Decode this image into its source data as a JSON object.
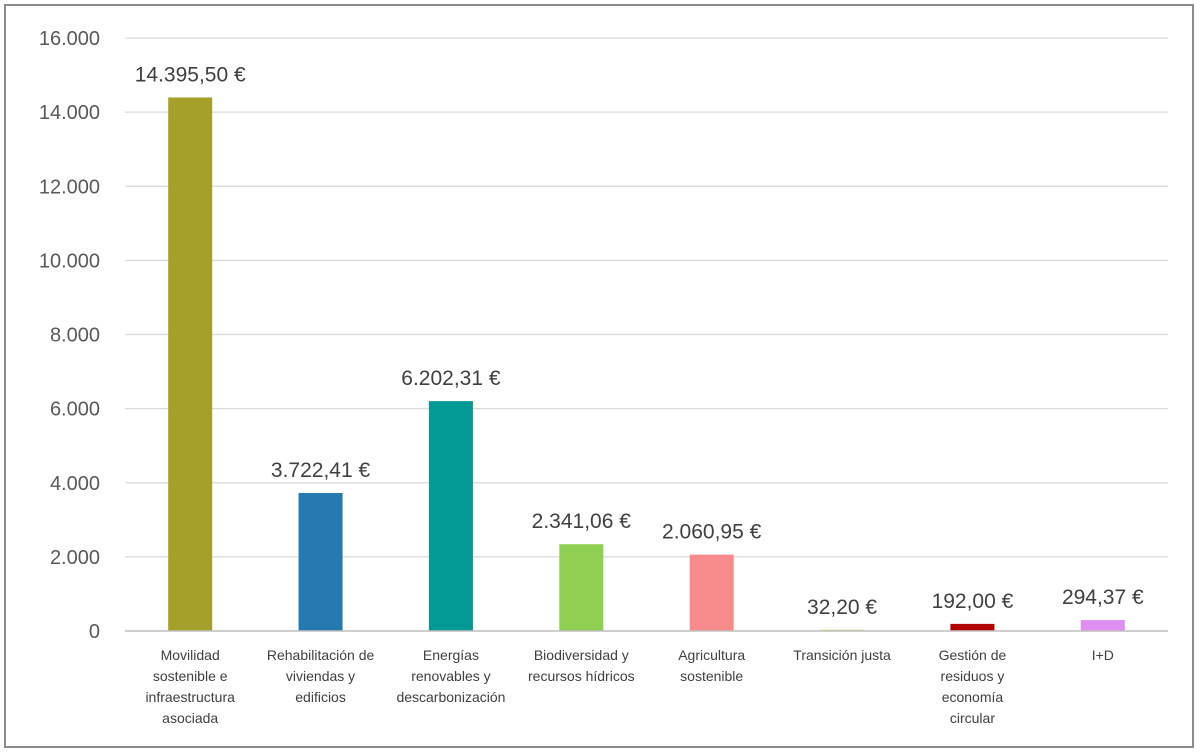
{
  "chart_data": {
    "type": "bar",
    "title": "",
    "xlabel": "",
    "ylabel": "",
    "ylim": [
      0,
      16000
    ],
    "yticks": [
      0,
      2000,
      4000,
      6000,
      8000,
      10000,
      12000,
      14000,
      16000
    ],
    "ytick_labels": [
      "0",
      "2.000",
      "4.000",
      "6.000",
      "8.000",
      "10.000",
      "12.000",
      "14.000",
      "16.000"
    ],
    "grid": true,
    "legend": "none",
    "categories": [
      [
        "Movilidad",
        "sostenible e",
        "infraestructura",
        "asociada"
      ],
      [
        "Rehabilitación de",
        "viviendas y",
        "edificios"
      ],
      [
        "Energías",
        "renovables y",
        "descarbonización"
      ],
      [
        "Biodiversidad y",
        "recursos hídricos"
      ],
      [
        "Agricultura",
        "sostenible"
      ],
      [
        "Transición justa"
      ],
      [
        "Gestión de",
        "residuos y",
        "economía",
        "circular"
      ],
      [
        "I+D"
      ]
    ],
    "values": [
      14395.5,
      3722.41,
      6202.31,
      2341.06,
      2060.95,
      32.2,
      192.0,
      294.37
    ],
    "value_labels": [
      "14.395,50 €",
      "3.722,41 €",
      "6.202,31 €",
      "2.341,06 €",
      "2.060,95 €",
      "32,20 €",
      "192,00 €",
      "294,37 €"
    ],
    "colors": [
      "#a5a02a",
      "#2479b0",
      "#039a96",
      "#8fcf52",
      "#f78b8b",
      "#c4cf52",
      "#b00000",
      "#df8ef2"
    ]
  }
}
